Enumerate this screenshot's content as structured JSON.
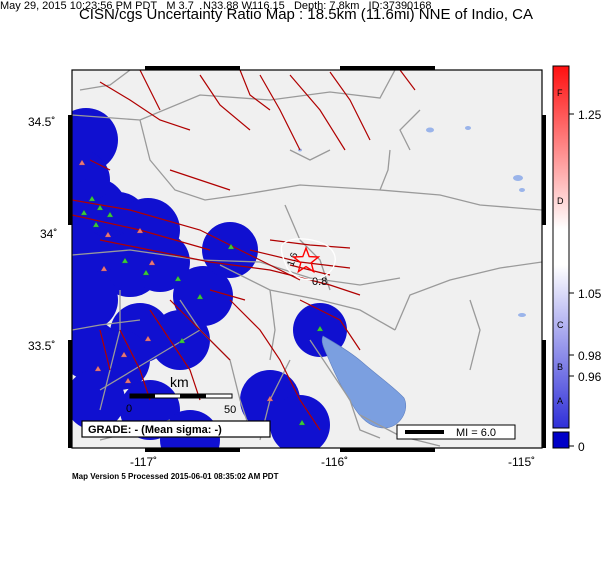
{
  "header": {
    "title": "CISN/cgs Uncertainty Ratio Map : 18.5km (11.6mi) NNE of Indio, CA",
    "date": "May 29, 2015 10:23:56 PM PDT",
    "magnitude": "M 3.7",
    "location": "N33.88 W116.15",
    "depth": "Depth: 7.8km",
    "event_id": "ID:37390168"
  },
  "map": {
    "x_ticks": [
      "-117˚",
      "-116˚",
      "-115˚"
    ],
    "y_ticks": [
      "34.5˚",
      "34˚",
      "33.5˚"
    ],
    "contour_labels": [
      "1.6",
      "0.8"
    ],
    "scale_bar": {
      "label": "km",
      "start": "0",
      "end": "50"
    },
    "grade_box": "GRADE: - (Mean sigma: -)",
    "mi_legend": "MI = 6.0",
    "colors": {
      "station_blue": "#1010d0",
      "land": "#f0f0f0",
      "lake": "#7b9fe0",
      "fault": "#b00000",
      "epicenter": "#ff0000",
      "seismic_station": "#3cc83c",
      "strong_motion_station": "#e87878"
    }
  },
  "colorbar": {
    "tick_labels": [
      "1.25",
      "1.05",
      "0.98",
      "0.96",
      "0"
    ],
    "grade_letters": [
      "F",
      "D",
      "C",
      "B",
      "A"
    ],
    "colors": [
      "#0000c8",
      "#ffffff",
      "#ff0000"
    ]
  },
  "footer": "Map Version 5 Processed 2015-06-01 08:35:02 AM PDT"
}
